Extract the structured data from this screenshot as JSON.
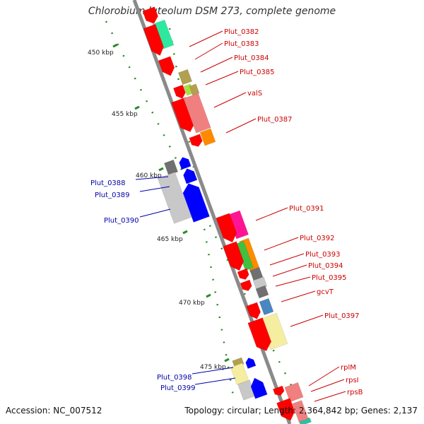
{
  "title": "Chlorobium luteolum DSM 273, complete genome",
  "footer": {
    "accession": "Accession: NC_007512",
    "summary": "Topology: circular; Length: 2,364,842 bp; Genes: 2,137"
  },
  "colors": {
    "backbone": "#8a8a8a",
    "forward_label": "#cc0000",
    "reverse_label": "#0000aa",
    "tick": "#2a8a2a"
  },
  "kbp_labels": [
    "450 kbp",
    "455 kbp",
    "460 kbp",
    "465 kbp",
    "470 kbp",
    "475 kbp"
  ],
  "forward_genes": [
    "Plut_0382",
    "Plut_0383",
    "Plut_0384",
    "Plut_0385",
    "valS",
    "Plut_0387",
    "Plut_0391",
    "Plut_0392",
    "Plut_0393",
    "Plut_0394",
    "Plut_0395",
    "gcvT",
    "Plut_0397",
    "rplM",
    "rpsI",
    "rpsB"
  ],
  "reverse_genes": [
    "Plut_0388",
    "Plut_0389",
    "Plut_0390",
    "Plut_0398",
    "Plut_0399"
  ]
}
